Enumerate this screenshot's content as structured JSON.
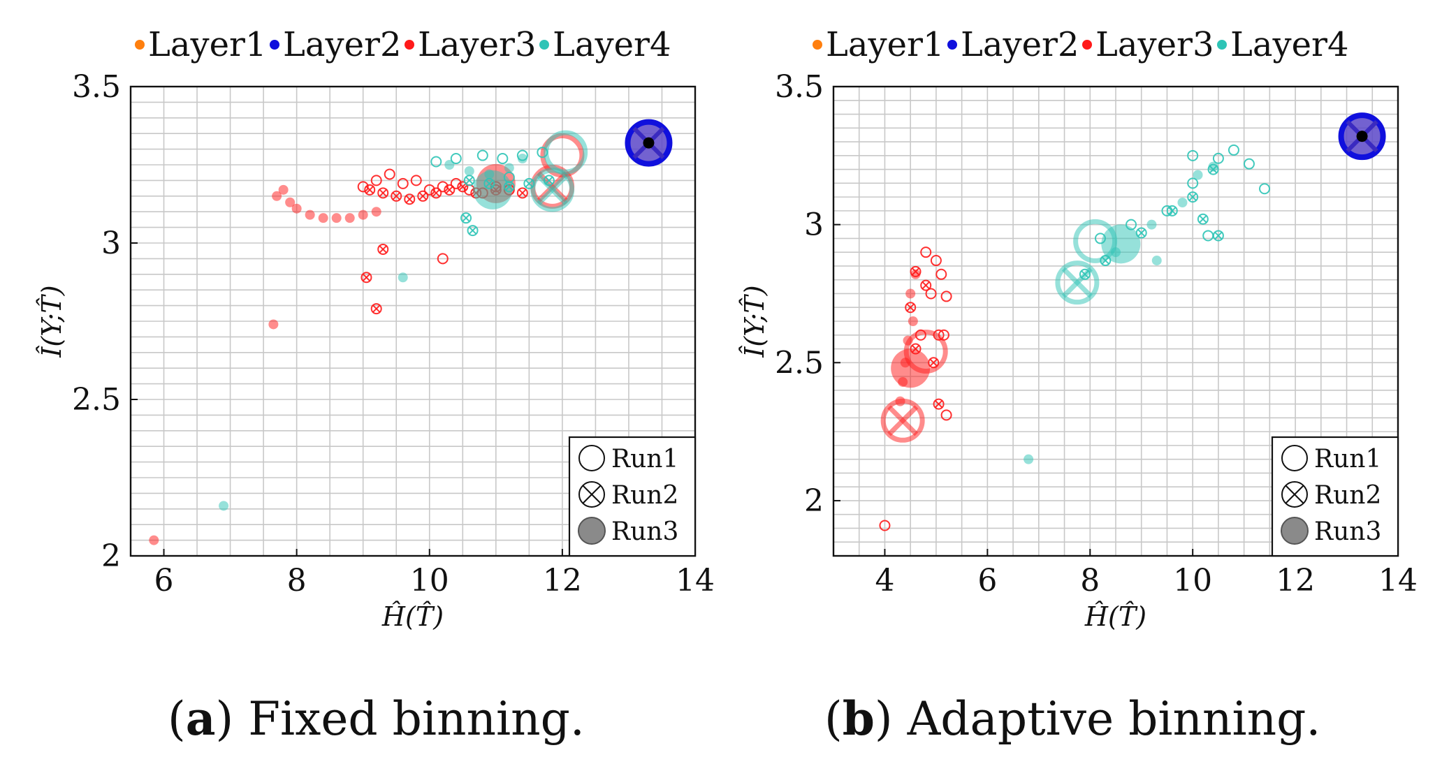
{
  "legend_labels": [
    "Layer1",
    "Layer2",
    "Layer3",
    "Layer4"
  ],
  "run_labels": [
    "Run1",
    "Run2",
    "Run3"
  ],
  "colors": {
    "Layer1": "#ff7f0e",
    "Layer2": "#1010dd",
    "Layer3": "#ff1a1a",
    "Layer4": "#2ec4b6"
  },
  "captions": [
    {
      "letter": "a",
      "text": "Fixed binning."
    },
    {
      "letter": "b",
      "text": "Adaptive binning."
    }
  ],
  "chart_data": [
    {
      "type": "scatter",
      "title": "",
      "xlabel": "Ĥ(T̂)",
      "ylabel": "Î(Y;T̂)",
      "xlim": [
        5.5,
        14
      ],
      "ylim": [
        2.0,
        3.5
      ],
      "xticks": [
        "6",
        "8",
        "10",
        "12",
        "14"
      ],
      "yticks": [
        "2",
        "2.5",
        "3",
        "3.5"
      ],
      "grid": true,
      "legend": "top",
      "series": [
        {
          "name": "Layer2",
          "run": "Run1",
          "points": [
            [
              13.3,
              3.32
            ]
          ]
        },
        {
          "name": "Layer2",
          "run": "Run2",
          "points": [
            [
              13.3,
              3.32
            ]
          ]
        },
        {
          "name": "Layer2",
          "run": "Run3",
          "points": [
            [
              13.3,
              3.32
            ]
          ]
        },
        {
          "name": "Layer3",
          "run": "Run1",
          "points": [
            [
              9.0,
              3.18
            ],
            [
              9.2,
              3.2
            ],
            [
              9.4,
              3.22
            ],
            [
              9.6,
              3.19
            ],
            [
              9.8,
              3.2
            ],
            [
              10.0,
              3.17
            ],
            [
              10.2,
              3.18
            ],
            [
              10.4,
              3.19
            ],
            [
              10.6,
              3.17
            ],
            [
              10.8,
              3.16
            ],
            [
              11.0,
              3.18
            ],
            [
              11.2,
              3.17
            ],
            [
              10.2,
              2.95
            ],
            [
              12.0,
              3.28
            ]
          ]
        },
        {
          "name": "Layer3",
          "run": "Run2",
          "points": [
            [
              9.1,
              3.17
            ],
            [
              9.3,
              3.16
            ],
            [
              9.5,
              3.15
            ],
            [
              9.7,
              3.14
            ],
            [
              9.9,
              3.15
            ],
            [
              10.1,
              3.16
            ],
            [
              10.3,
              3.17
            ],
            [
              10.5,
              3.18
            ],
            [
              10.7,
              3.16
            ],
            [
              11.0,
              3.17
            ],
            [
              11.4,
              3.16
            ],
            [
              9.3,
              2.98
            ],
            [
              9.05,
              2.89
            ],
            [
              9.2,
              2.79
            ],
            [
              11.85,
              3.18
            ]
          ]
        },
        {
          "name": "Layer3",
          "run": "Run3",
          "points": [
            [
              7.7,
              3.15
            ],
            [
              7.8,
              3.17
            ],
            [
              7.9,
              3.13
            ],
            [
              8.0,
              3.11
            ],
            [
              8.2,
              3.09
            ],
            [
              8.4,
              3.08
            ],
            [
              8.6,
              3.08
            ],
            [
              8.8,
              3.08
            ],
            [
              9.0,
              3.09
            ],
            [
              9.2,
              3.1
            ],
            [
              7.65,
              2.74
            ],
            [
              5.85,
              2.05
            ],
            [
              11.0,
              3.19
            ]
          ]
        },
        {
          "name": "Layer4",
          "run": "Run1",
          "points": [
            [
              10.1,
              3.26
            ],
            [
              10.4,
              3.27
            ],
            [
              10.8,
              3.28
            ],
            [
              11.1,
              3.27
            ],
            [
              11.4,
              3.28
            ],
            [
              11.7,
              3.29
            ],
            [
              11.2,
              3.21
            ],
            [
              12.05,
              3.29
            ]
          ]
        },
        {
          "name": "Layer4",
          "run": "Run2",
          "points": [
            [
              10.6,
              3.2
            ],
            [
              10.9,
              3.19
            ],
            [
              11.2,
              3.18
            ],
            [
              11.5,
              3.19
            ],
            [
              11.8,
              3.2
            ],
            [
              10.55,
              3.08
            ],
            [
              10.65,
              3.04
            ],
            [
              11.85,
              3.17
            ]
          ]
        },
        {
          "name": "Layer4",
          "run": "Run3",
          "points": [
            [
              10.3,
              3.25
            ],
            [
              10.6,
              3.23
            ],
            [
              10.9,
              3.22
            ],
            [
              11.2,
              3.24
            ],
            [
              11.4,
              3.27
            ],
            [
              9.6,
              2.89
            ],
            [
              6.9,
              2.16
            ],
            [
              10.95,
              3.17
            ]
          ]
        }
      ]
    },
    {
      "type": "scatter",
      "title": "",
      "xlabel": "Ĥ(T̂)",
      "ylabel": "Î(Y;T̂)",
      "xlim": [
        3,
        14
      ],
      "ylim": [
        1.8,
        3.5
      ],
      "xticks": [
        "4",
        "6",
        "8",
        "10",
        "12",
        "14"
      ],
      "yticks": [
        "2",
        "2.5",
        "3",
        "3.5"
      ],
      "grid": true,
      "legend": "top",
      "series": [
        {
          "name": "Layer2",
          "run": "Run1",
          "points": [
            [
              13.3,
              3.32
            ]
          ]
        },
        {
          "name": "Layer2",
          "run": "Run2",
          "points": [
            [
              13.3,
              3.32
            ]
          ]
        },
        {
          "name": "Layer2",
          "run": "Run3",
          "points": [
            [
              13.3,
              3.32
            ]
          ]
        },
        {
          "name": "Layer3",
          "run": "Run1",
          "points": [
            [
              4.8,
              2.9
            ],
            [
              5.0,
              2.87
            ],
            [
              5.1,
              2.82
            ],
            [
              4.9,
              2.75
            ],
            [
              5.2,
              2.74
            ],
            [
              5.05,
              2.6
            ],
            [
              4.7,
              2.6
            ],
            [
              5.15,
              2.6
            ],
            [
              5.2,
              2.31
            ],
            [
              4.0,
              1.91
            ],
            [
              4.8,
              2.54
            ]
          ]
        },
        {
          "name": "Layer3",
          "run": "Run2",
          "points": [
            [
              4.6,
              2.83
            ],
            [
              4.8,
              2.78
            ],
            [
              4.5,
              2.7
            ],
            [
              4.6,
              2.55
            ],
            [
              4.95,
              2.5
            ],
            [
              5.05,
              2.35
            ],
            [
              4.35,
              2.29
            ]
          ]
        },
        {
          "name": "Layer3",
          "run": "Run3",
          "points": [
            [
              4.6,
              2.82
            ],
            [
              4.5,
              2.75
            ],
            [
              4.55,
              2.65
            ],
            [
              4.45,
              2.58
            ],
            [
              4.4,
              2.5
            ],
            [
              4.35,
              2.43
            ],
            [
              4.3,
              2.36
            ],
            [
              4.5,
              2.48
            ]
          ]
        },
        {
          "name": "Layer4",
          "run": "Run1",
          "points": [
            [
              8.2,
              2.95
            ],
            [
              8.8,
              3.0
            ],
            [
              9.5,
              3.05
            ],
            [
              10.0,
              3.15
            ],
            [
              10.0,
              3.25
            ],
            [
              10.5,
              3.24
            ],
            [
              10.8,
              3.27
            ],
            [
              11.1,
              3.22
            ],
            [
              11.4,
              3.13
            ],
            [
              10.3,
              2.96
            ],
            [
              8.1,
              2.94
            ]
          ]
        },
        {
          "name": "Layer4",
          "run": "Run2",
          "points": [
            [
              7.9,
              2.82
            ],
            [
              8.3,
              2.87
            ],
            [
              9.0,
              2.97
            ],
            [
              9.6,
              3.05
            ],
            [
              10.0,
              3.1
            ],
            [
              10.4,
              3.2
            ],
            [
              10.2,
              3.02
            ],
            [
              10.5,
              2.96
            ],
            [
              7.75,
              2.79
            ]
          ]
        },
        {
          "name": "Layer4",
          "run": "Run3",
          "points": [
            [
              8.5,
              2.9
            ],
            [
              9.2,
              3.0
            ],
            [
              9.8,
              3.08
            ],
            [
              10.1,
              3.18
            ],
            [
              10.4,
              3.21
            ],
            [
              9.3,
              2.87
            ],
            [
              6.8,
              2.15
            ],
            [
              8.6,
              2.93
            ]
          ]
        }
      ]
    }
  ]
}
